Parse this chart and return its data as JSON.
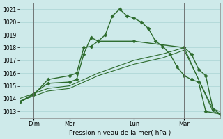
{
  "title": "Pression niveau de la mer( hPa )",
  "ylim": [
    1012.5,
    1021.5
  ],
  "xlim": [
    0,
    28
  ],
  "yticks": [
    1013,
    1014,
    1015,
    1016,
    1017,
    1018,
    1019,
    1020,
    1021
  ],
  "bg_color": "#ceeaea",
  "grid_color": "#aad4d4",
  "line_color": "#2d6b2d",
  "tick_days": [
    {
      "label": "Dim",
      "x": 2
    },
    {
      "label": "Mer",
      "x": 7
    },
    {
      "label": "Lun",
      "x": 16
    },
    {
      "label": "Mar",
      "x": 23
    }
  ],
  "vlines": [
    2,
    7,
    16,
    23
  ],
  "series": [
    {
      "x": [
        0,
        2,
        4,
        7,
        8,
        9,
        10,
        11,
        12,
        13,
        14,
        15,
        16,
        17,
        18,
        19,
        20,
        21,
        22,
        23,
        24,
        25,
        26,
        28
      ],
      "y": [
        1013.7,
        1014.3,
        1015.5,
        1015.8,
        1016.0,
        1018.0,
        1018.1,
        1018.5,
        1019.0,
        1020.5,
        1021.0,
        1020.5,
        1020.3,
        1020.0,
        1019.5,
        1018.5,
        1018.1,
        1017.5,
        1016.5,
        1015.8,
        1015.5,
        1015.3,
        1013.0,
        1012.8
      ],
      "marker": true
    },
    {
      "x": [
        0,
        2,
        4,
        7,
        8,
        9,
        10,
        11,
        16,
        23,
        24,
        25,
        26,
        27,
        28
      ],
      "y": [
        1013.7,
        1014.4,
        1015.2,
        1015.3,
        1015.5,
        1017.5,
        1018.8,
        1018.5,
        1018.5,
        1018.0,
        1017.5,
        1016.3,
        1015.8,
        1013.2,
        1012.8
      ],
      "marker": true
    },
    {
      "x": [
        0,
        4,
        7,
        11,
        16,
        20,
        23,
        27,
        28
      ],
      "y": [
        1014.0,
        1014.8,
        1015.0,
        1016.0,
        1017.0,
        1017.5,
        1018.0,
        1013.0,
        1012.8
      ],
      "marker": false
    },
    {
      "x": [
        0,
        4,
        7,
        11,
        16,
        20,
        23,
        27,
        28
      ],
      "y": [
        1013.8,
        1014.6,
        1014.8,
        1015.8,
        1016.7,
        1017.2,
        1017.8,
        1013.2,
        1013.0
      ],
      "marker": false
    }
  ]
}
